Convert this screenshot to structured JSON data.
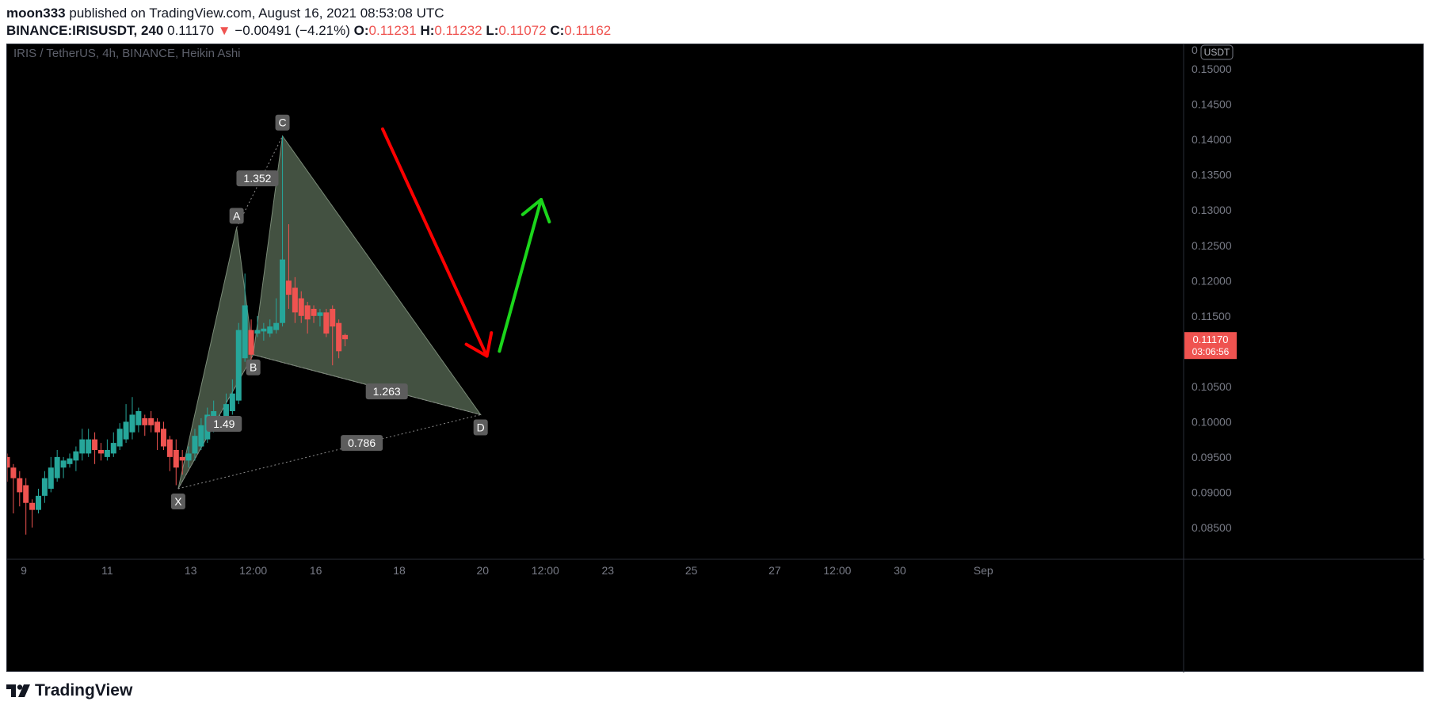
{
  "header": {
    "author": "moon333",
    "published_text": "published on TradingView.com, August 16, 2021 08:53:08 UTC",
    "symbol": "BINANCE:IRISUSDT, 240",
    "last_price": "0.11170",
    "change_arrow": "▼",
    "change": "−0.00491 (−4.21%)",
    "o_label": "O:",
    "o_value": "0.11231",
    "h_label": "H:",
    "h_value": "0.11232",
    "l_label": "L:",
    "l_value": "0.11072",
    "c_label": "C:",
    "c_value": "0.11162"
  },
  "footer": {
    "brand": "TradingView"
  },
  "chart_data": {
    "type": "candlestick",
    "title": "IRIS / TetherUS, 4h, BINANCE, Heikin Ashi",
    "currency_badge": "USDT",
    "price_axis": {
      "ticks": [
        "0.15000",
        "0.14500",
        "0.14000",
        "0.13500",
        "0.13000",
        "0.12500",
        "0.12000",
        "0.11500",
        "0.11000",
        "0.10500",
        "0.10000",
        "0.09500",
        "0.09000",
        "0.08500"
      ],
      "top_partial_label": "0"
    },
    "current_price_label": {
      "price": "0.11170",
      "countdown": "03:06:56"
    },
    "time_axis": {
      "unit": "days (Aug 2021)",
      "range": [
        8.6,
        36.8
      ],
      "ticks": [
        {
          "t": 9.0,
          "label": "9"
        },
        {
          "t": 11.0,
          "label": "11"
        },
        {
          "t": 13.0,
          "label": "13"
        },
        {
          "t": 14.5,
          "label": "12:00"
        },
        {
          "t": 16.0,
          "label": "16"
        },
        {
          "t": 18.0,
          "label": "18"
        },
        {
          "t": 20.0,
          "label": "20"
        },
        {
          "t": 21.5,
          "label": "12:00"
        },
        {
          "t": 23.0,
          "label": "23"
        },
        {
          "t": 25.0,
          "label": "25"
        },
        {
          "t": 27.0,
          "label": "27"
        },
        {
          "t": 28.5,
          "label": "12:00"
        },
        {
          "t": 30.0,
          "label": "30"
        },
        {
          "t": 32.0,
          "label": "Sep"
        }
      ]
    },
    "price_range": [
      0.0805,
      0.1535
    ],
    "colors": {
      "up": "#26a69a",
      "down": "#ef5350",
      "pattern_fill": "#4a5a48",
      "arrow_down": "#ff0000",
      "arrow_up": "#1bd61b"
    },
    "candles": [
      {
        "t": 8.6,
        "o": 0.095,
        "h": 0.0955,
        "l": 0.0915,
        "c": 0.0935
      },
      {
        "t": 8.75,
        "o": 0.0935,
        "h": 0.094,
        "l": 0.087,
        "c": 0.092
      },
      {
        "t": 8.9,
        "o": 0.092,
        "h": 0.093,
        "l": 0.088,
        "c": 0.09
      },
      {
        "t": 9.05,
        "o": 0.091,
        "h": 0.092,
        "l": 0.084,
        "c": 0.0885
      },
      {
        "t": 9.2,
        "o": 0.0885,
        "h": 0.089,
        "l": 0.085,
        "c": 0.0875
      },
      {
        "t": 9.35,
        "o": 0.0875,
        "h": 0.0905,
        "l": 0.087,
        "c": 0.0895
      },
      {
        "t": 9.5,
        "o": 0.0895,
        "h": 0.093,
        "l": 0.0885,
        "c": 0.092
      },
      {
        "t": 9.65,
        "o": 0.0905,
        "h": 0.095,
        "l": 0.09,
        "c": 0.0935
      },
      {
        "t": 9.8,
        "o": 0.092,
        "h": 0.096,
        "l": 0.0915,
        "c": 0.095
      },
      {
        "t": 9.95,
        "o": 0.0935,
        "h": 0.095,
        "l": 0.092,
        "c": 0.0945
      },
      {
        "t": 10.1,
        "o": 0.094,
        "h": 0.0955,
        "l": 0.0935,
        "c": 0.0948
      },
      {
        "t": 10.25,
        "o": 0.0945,
        "h": 0.0965,
        "l": 0.093,
        "c": 0.0958
      },
      {
        "t": 10.4,
        "o": 0.0955,
        "h": 0.099,
        "l": 0.0945,
        "c": 0.0975
      },
      {
        "t": 10.55,
        "o": 0.0955,
        "h": 0.099,
        "l": 0.095,
        "c": 0.0975
      },
      {
        "t": 10.7,
        "o": 0.0975,
        "h": 0.0985,
        "l": 0.094,
        "c": 0.096
      },
      {
        "t": 10.85,
        "o": 0.096,
        "h": 0.097,
        "l": 0.0945,
        "c": 0.0955
      },
      {
        "t": 11.0,
        "o": 0.095,
        "h": 0.0975,
        "l": 0.0945,
        "c": 0.096
      },
      {
        "t": 11.15,
        "o": 0.0955,
        "h": 0.0985,
        "l": 0.095,
        "c": 0.097
      },
      {
        "t": 11.3,
        "o": 0.0965,
        "h": 0.0998,
        "l": 0.096,
        "c": 0.099
      },
      {
        "t": 11.45,
        "o": 0.0975,
        "h": 0.1025,
        "l": 0.097,
        "c": 0.1
      },
      {
        "t": 11.6,
        "o": 0.0985,
        "h": 0.1035,
        "l": 0.0975,
        "c": 0.101
      },
      {
        "t": 11.75,
        "o": 0.0995,
        "h": 0.102,
        "l": 0.0985,
        "c": 0.1015
      },
      {
        "t": 11.9,
        "o": 0.1005,
        "h": 0.101,
        "l": 0.098,
        "c": 0.0995
      },
      {
        "t": 12.05,
        "o": 0.1005,
        "h": 0.1015,
        "l": 0.0985,
        "c": 0.0995
      },
      {
        "t": 12.2,
        "o": 0.1,
        "h": 0.1005,
        "l": 0.096,
        "c": 0.0985
      },
      {
        "t": 12.35,
        "o": 0.099,
        "h": 0.1,
        "l": 0.096,
        "c": 0.0965
      },
      {
        "t": 12.5,
        "o": 0.0975,
        "h": 0.098,
        "l": 0.093,
        "c": 0.095
      },
      {
        "t": 12.65,
        "o": 0.096,
        "h": 0.0975,
        "l": 0.091,
        "c": 0.0935
      },
      {
        "t": 12.8,
        "o": 0.095,
        "h": 0.096,
        "l": 0.0925,
        "c": 0.0945
      },
      {
        "t": 12.95,
        "o": 0.0945,
        "h": 0.0965,
        "l": 0.0935,
        "c": 0.0955
      },
      {
        "t": 13.1,
        "o": 0.0955,
        "h": 0.099,
        "l": 0.0945,
        "c": 0.098
      },
      {
        "t": 13.25,
        "o": 0.0965,
        "h": 0.1005,
        "l": 0.096,
        "c": 0.0995
      },
      {
        "t": 13.4,
        "o": 0.0975,
        "h": 0.102,
        "l": 0.097,
        "c": 0.101
      },
      {
        "t": 13.55,
        "o": 0.099,
        "h": 0.103,
        "l": 0.0985,
        "c": 0.1015
      },
      {
        "t": 13.7,
        "o": 0.1,
        "h": 0.101,
        "l": 0.099,
        "c": 0.1005
      },
      {
        "t": 13.85,
        "o": 0.1005,
        "h": 0.104,
        "l": 0.1,
        "c": 0.1025
      },
      {
        "t": 14.0,
        "o": 0.1015,
        "h": 0.106,
        "l": 0.101,
        "c": 0.104
      },
      {
        "t": 14.15,
        "o": 0.103,
        "h": 0.114,
        "l": 0.1025,
        "c": 0.113
      },
      {
        "t": 14.3,
        "o": 0.109,
        "h": 0.121,
        "l": 0.1085,
        "c": 0.1165
      },
      {
        "t": 14.45,
        "o": 0.113,
        "h": 0.1145,
        "l": 0.108,
        "c": 0.1095
      },
      {
        "t": 14.6,
        "o": 0.1125,
        "h": 0.115,
        "l": 0.112,
        "c": 0.113
      },
      {
        "t": 14.75,
        "o": 0.1128,
        "h": 0.114,
        "l": 0.1115,
        "c": 0.1132
      },
      {
        "t": 14.9,
        "o": 0.1125,
        "h": 0.1145,
        "l": 0.112,
        "c": 0.1135
      },
      {
        "t": 15.05,
        "o": 0.113,
        "h": 0.1175,
        "l": 0.1125,
        "c": 0.114
      },
      {
        "t": 15.2,
        "o": 0.114,
        "h": 0.1405,
        "l": 0.1135,
        "c": 0.123
      },
      {
        "t": 15.35,
        "o": 0.12,
        "h": 0.128,
        "l": 0.116,
        "c": 0.118
      },
      {
        "t": 15.5,
        "o": 0.119,
        "h": 0.1205,
        "l": 0.114,
        "c": 0.1155
      },
      {
        "t": 15.65,
        "o": 0.1175,
        "h": 0.1185,
        "l": 0.114,
        "c": 0.115
      },
      {
        "t": 15.8,
        "o": 0.1165,
        "h": 0.117,
        "l": 0.1125,
        "c": 0.1145
      },
      {
        "t": 15.95,
        "o": 0.116,
        "h": 0.1165,
        "l": 0.114,
        "c": 0.115
      },
      {
        "t": 16.1,
        "o": 0.115,
        "h": 0.116,
        "l": 0.1135,
        "c": 0.1155
      },
      {
        "t": 16.25,
        "o": 0.1155,
        "h": 0.116,
        "l": 0.112,
        "c": 0.1125
      },
      {
        "t": 16.4,
        "o": 0.116,
        "h": 0.1165,
        "l": 0.108,
        "c": 0.1135
      },
      {
        "t": 16.55,
        "o": 0.114,
        "h": 0.1145,
        "l": 0.109,
        "c": 0.11
      },
      {
        "t": 16.7,
        "o": 0.1123,
        "h": 0.1125,
        "l": 0.1107,
        "c": 0.1117
      }
    ],
    "pattern": {
      "name": "XABCD harmonic",
      "points": [
        {
          "label": "X",
          "t": 12.7,
          "p": 0.0905
        },
        {
          "label": "A",
          "t": 14.1,
          "p": 0.1275
        },
        {
          "label": "B",
          "t": 14.5,
          "p": 0.1095
        },
        {
          "label": "C",
          "t": 15.2,
          "p": 0.1405
        },
        {
          "label": "D",
          "t": 19.95,
          "p": 0.101
        }
      ],
      "ratios": [
        {
          "label": "1.352",
          "t": 14.6,
          "p": 0.1345
        },
        {
          "label": "1.263",
          "t": 17.7,
          "p": 0.1043
        },
        {
          "label": "0.786",
          "t": 17.1,
          "p": 0.097
        },
        {
          "label": "1.49",
          "t": 13.8,
          "p": 0.0997
        }
      ]
    },
    "annotations": [
      {
        "type": "arrow",
        "direction": "down",
        "color": "red",
        "from": {
          "t": 17.6,
          "p": 0.1415
        },
        "to": {
          "t": 20.1,
          "p": 0.1093
        }
      },
      {
        "type": "arrow",
        "direction": "up",
        "color": "green",
        "from": {
          "t": 20.4,
          "p": 0.11
        },
        "to": {
          "t": 21.4,
          "p": 0.1315
        }
      }
    ]
  }
}
